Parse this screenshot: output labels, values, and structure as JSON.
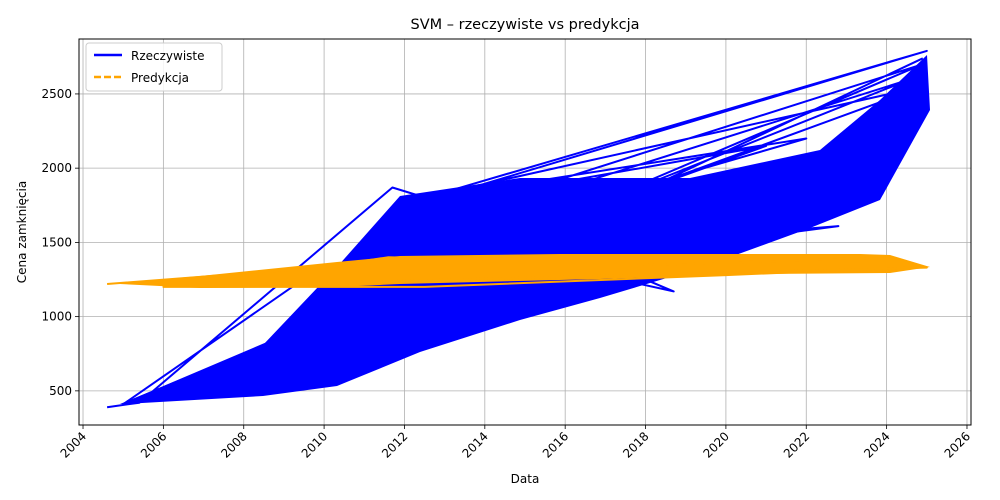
{
  "chart_data": {
    "type": "line",
    "title": "SVM – rzeczywiste vs predykcja",
    "xlabel": "Data",
    "ylabel": "Cena zamknięcia",
    "xlim": [
      2003.9,
      2026.1
    ],
    "ylim": [
      270,
      2870
    ],
    "x_ticks": [
      2004,
      2006,
      2008,
      2010,
      2012,
      2014,
      2016,
      2018,
      2020,
      2022,
      2024,
      2026
    ],
    "x_tick_labels": [
      "2004",
      "2006",
      "2008",
      "2010",
      "2012",
      "2014",
      "2016",
      "2018",
      "2020",
      "2022",
      "2024",
      "2026"
    ],
    "y_ticks": [
      500,
      1000,
      1500,
      2000,
      2500
    ],
    "y_tick_labels": [
      "500",
      "1000",
      "1500",
      "2000",
      "2500"
    ],
    "grid": true,
    "legend_position": "top-left",
    "series": [
      {
        "name": "Rzeczywiste",
        "color": "#0000ff",
        "style": "solid",
        "points": [
          [
            2004.6,
            390
          ],
          [
            2005.4,
            420
          ],
          [
            2011.7,
            1870
          ],
          [
            2013.5,
            1720
          ],
          [
            2024.9,
            2700
          ],
          [
            2005.0,
            410
          ],
          [
            2009.9,
            1330
          ],
          [
            2022.8,
            1610
          ],
          [
            2011.8,
            1220
          ],
          [
            2024.6,
            2600
          ],
          [
            2012.3,
            1550
          ],
          [
            2018.7,
            1170
          ],
          [
            2012.9,
            1830
          ],
          [
            2025.0,
            2790
          ],
          [
            2011.6,
            1700
          ],
          [
            2021.0,
            2150
          ],
          [
            2013.8,
            1450
          ],
          [
            2024.9,
            2550
          ],
          [
            2012.1,
            1780
          ],
          [
            2014.5,
            1880
          ],
          [
            2022.0,
            2200
          ],
          [
            2015.0,
            1650
          ],
          [
            2023.9,
            1830
          ],
          [
            2013.0,
            1300
          ],
          [
            2024.2,
            2000
          ],
          [
            2016.0,
            1600
          ],
          [
            2024.9,
            2740
          ]
        ]
      },
      {
        "name": "Predykcja",
        "color": "#ffa500",
        "style": "dashed",
        "points": [
          [
            2004.6,
            1220
          ],
          [
            2009.9,
            1330
          ],
          [
            2011.6,
            1400
          ],
          [
            2018.5,
            1350
          ],
          [
            2024.1,
            1400
          ],
          [
            2025.0,
            1330
          ],
          [
            2006.0,
            1200
          ],
          [
            2012.5,
            1200
          ],
          [
            2020.0,
            1280
          ],
          [
            2024.5,
            1330
          ]
        ]
      }
    ]
  }
}
